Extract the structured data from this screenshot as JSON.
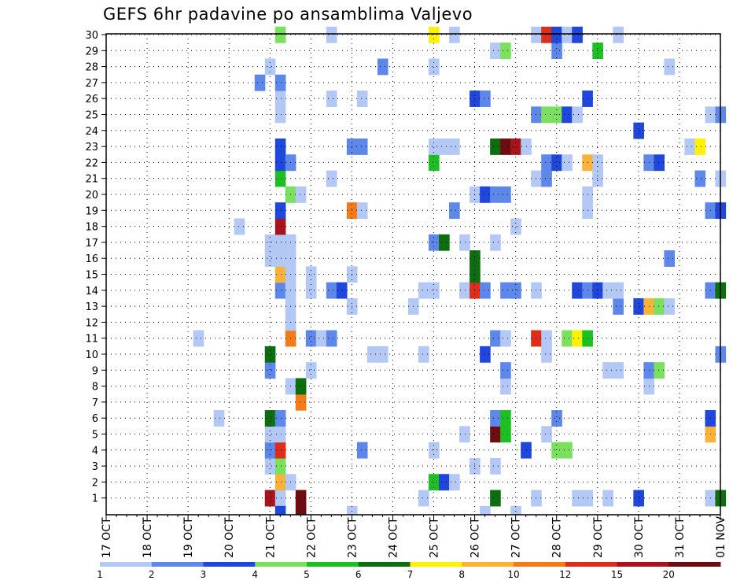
{
  "chart_data": {
    "type": "heatmap",
    "title": "GEFS 6hr padavine po ansamblima Valjevo",
    "xlabel": "",
    "ylabel": "",
    "x_tick_labels": [
      "17 OCT",
      "18 OCT",
      "19 OCT",
      "20 OCT",
      "21 OCT",
      "22 OCT",
      "23 OCT",
      "24 OCT",
      "25 OCT",
      "26 OCT",
      "27 OCT",
      "28 OCT",
      "29 OCT",
      "30 OCT",
      "31 OCT",
      "01 NOV"
    ],
    "y_tick_labels": [
      "1",
      "2",
      "3",
      "4",
      "5",
      "6",
      "7",
      "8",
      "9",
      "10",
      "11",
      "12",
      "13",
      "14",
      "15",
      "16",
      "17",
      "18",
      "19",
      "20",
      "21",
      "22",
      "23",
      "24",
      "25",
      "26",
      "27",
      "28",
      "29",
      "30"
    ],
    "x_unit": "6-hour step from 17 OCT 00Z",
    "x_range": [
      0,
      60
    ],
    "y_range": [
      0,
      30
    ],
    "grid": true,
    "levels": [
      "1",
      "2",
      "3",
      "4",
      "5",
      "6",
      "7",
      "8",
      "10",
      "12",
      "15",
      "20"
    ],
    "colors": [
      "#b3c8f5",
      "#5e87ea",
      "#1f47dc",
      "#7ae05e",
      "#1ebf23",
      "#0c6e0f",
      "#fff200",
      "#fab239",
      "#f37b18",
      "#dc2e1a",
      "#a7141c",
      "#6e0d11"
    ],
    "cells": [
      [
        1,
        16,
        10
      ],
      [
        1,
        17,
        0
      ],
      [
        1,
        19,
        11
      ],
      [
        1,
        31,
        0
      ],
      [
        1,
        38,
        5
      ],
      [
        1,
        42,
        0
      ],
      [
        1,
        46,
        0
      ],
      [
        1,
        47,
        0
      ],
      [
        1,
        49,
        0
      ],
      [
        1,
        52,
        2
      ],
      [
        1,
        59,
        0
      ],
      [
        1,
        60,
        5
      ],
      [
        2,
        17,
        7
      ],
      [
        2,
        18,
        0
      ],
      [
        2,
        32,
        4
      ],
      [
        2,
        33,
        2
      ],
      [
        2,
        34,
        0
      ],
      [
        3,
        16,
        0
      ],
      [
        3,
        17,
        3
      ],
      [
        3,
        36,
        0
      ],
      [
        3,
        38,
        0
      ],
      [
        4,
        16,
        1
      ],
      [
        4,
        17,
        9
      ],
      [
        4,
        25,
        1
      ],
      [
        4,
        32,
        0
      ],
      [
        4,
        41,
        2
      ],
      [
        4,
        44,
        3
      ],
      [
        4,
        45,
        3
      ],
      [
        5,
        16,
        0
      ],
      [
        5,
        17,
        0
      ],
      [
        5,
        35,
        0
      ],
      [
        5,
        38,
        11
      ],
      [
        5,
        39,
        4
      ],
      [
        5,
        43,
        0
      ],
      [
        5,
        59,
        7
      ],
      [
        6,
        11,
        0
      ],
      [
        6,
        16,
        5
      ],
      [
        6,
        17,
        1
      ],
      [
        6,
        38,
        1
      ],
      [
        6,
        39,
        4
      ],
      [
        6,
        44,
        1
      ],
      [
        6,
        59,
        2
      ],
      [
        7,
        19,
        8
      ],
      [
        8,
        18,
        0
      ],
      [
        8,
        19,
        5
      ],
      [
        8,
        39,
        0
      ],
      [
        8,
        53,
        0
      ],
      [
        9,
        16,
        1
      ],
      [
        9,
        20,
        0
      ],
      [
        9,
        39,
        1
      ],
      [
        9,
        49,
        0
      ],
      [
        9,
        50,
        0
      ],
      [
        9,
        53,
        1
      ],
      [
        9,
        54,
        3
      ],
      [
        10,
        16,
        5
      ],
      [
        10,
        26,
        0
      ],
      [
        10,
        27,
        0
      ],
      [
        10,
        31,
        0
      ],
      [
        10,
        37,
        2
      ],
      [
        10,
        43,
        0
      ],
      [
        10,
        60,
        1
      ],
      [
        11,
        9,
        0
      ],
      [
        11,
        18,
        8
      ],
      [
        11,
        20,
        1
      ],
      [
        11,
        21,
        0
      ],
      [
        11,
        22,
        1
      ],
      [
        11,
        38,
        1
      ],
      [
        11,
        39,
        0
      ],
      [
        11,
        42,
        9
      ],
      [
        11,
        43,
        0
      ],
      [
        11,
        45,
        3
      ],
      [
        11,
        46,
        6
      ],
      [
        11,
        47,
        4
      ],
      [
        12,
        18,
        0
      ],
      [
        13,
        18,
        0
      ],
      [
        13,
        24,
        0
      ],
      [
        13,
        30,
        0
      ],
      [
        13,
        50,
        1
      ],
      [
        13,
        52,
        2
      ],
      [
        13,
        53,
        7
      ],
      [
        13,
        54,
        3
      ],
      [
        13,
        55,
        0
      ],
      [
        14,
        17,
        1
      ],
      [
        14,
        18,
        0
      ],
      [
        14,
        20,
        0
      ],
      [
        14,
        22,
        1
      ],
      [
        14,
        23,
        2
      ],
      [
        14,
        31,
        0
      ],
      [
        14,
        32,
        0
      ],
      [
        14,
        35,
        0
      ],
      [
        14,
        36,
        9
      ],
      [
        14,
        37,
        1
      ],
      [
        14,
        39,
        1
      ],
      [
        14,
        40,
        1
      ],
      [
        14,
        42,
        0
      ],
      [
        14,
        46,
        2
      ],
      [
        14,
        47,
        1
      ],
      [
        14,
        48,
        2
      ],
      [
        14,
        49,
        0
      ],
      [
        14,
        50,
        0
      ],
      [
        14,
        59,
        1
      ],
      [
        14,
        60,
        5
      ],
      [
        15,
        17,
        7
      ],
      [
        15,
        18,
        0
      ],
      [
        15,
        20,
        0
      ],
      [
        15,
        24,
        0
      ],
      [
        15,
        36,
        5
      ],
      [
        16,
        16,
        0
      ],
      [
        16,
        17,
        0
      ],
      [
        16,
        18,
        0
      ],
      [
        16,
        36,
        5
      ],
      [
        16,
        55,
        1
      ],
      [
        17,
        16,
        0
      ],
      [
        17,
        17,
        0
      ],
      [
        17,
        18,
        0
      ],
      [
        17,
        32,
        1
      ],
      [
        17,
        33,
        5
      ],
      [
        17,
        35,
        0
      ],
      [
        17,
        38,
        0
      ],
      [
        18,
        13,
        0
      ],
      [
        18,
        17,
        10
      ],
      [
        18,
        40,
        0
      ],
      [
        19,
        17,
        2
      ],
      [
        19,
        24,
        8
      ],
      [
        19,
        25,
        0
      ],
      [
        19,
        34,
        1
      ],
      [
        19,
        47,
        0
      ],
      [
        19,
        59,
        1
      ],
      [
        19,
        60,
        2
      ],
      [
        20,
        18,
        3
      ],
      [
        20,
        19,
        0
      ],
      [
        20,
        36,
        0
      ],
      [
        20,
        37,
        2
      ],
      [
        20,
        38,
        1
      ],
      [
        20,
        39,
        1
      ],
      [
        20,
        47,
        0
      ],
      [
        21,
        17,
        4
      ],
      [
        21,
        22,
        0
      ],
      [
        21,
        42,
        0
      ],
      [
        21,
        43,
        1
      ],
      [
        21,
        48,
        0
      ],
      [
        21,
        58,
        1
      ],
      [
        21,
        60,
        0
      ],
      [
        22,
        17,
        2
      ],
      [
        22,
        18,
        1
      ],
      [
        22,
        32,
        4
      ],
      [
        22,
        43,
        1
      ],
      [
        22,
        44,
        2
      ],
      [
        22,
        45,
        0
      ],
      [
        22,
        47,
        7
      ],
      [
        22,
        48,
        0
      ],
      [
        22,
        53,
        1
      ],
      [
        22,
        54,
        2
      ],
      [
        23,
        17,
        2
      ],
      [
        23,
        24,
        1
      ],
      [
        23,
        25,
        1
      ],
      [
        23,
        32,
        0
      ],
      [
        23,
        33,
        0
      ],
      [
        23,
        34,
        0
      ],
      [
        23,
        38,
        5
      ],
      [
        23,
        39,
        11
      ],
      [
        23,
        40,
        10
      ],
      [
        23,
        41,
        0
      ],
      [
        23,
        57,
        0
      ],
      [
        23,
        58,
        6
      ],
      [
        24,
        52,
        2
      ],
      [
        25,
        17,
        0
      ],
      [
        25,
        42,
        1
      ],
      [
        25,
        43,
        3
      ],
      [
        25,
        44,
        3
      ],
      [
        25,
        45,
        2
      ],
      [
        25,
        46,
        0
      ],
      [
        25,
        59,
        0
      ],
      [
        25,
        60,
        1
      ],
      [
        26,
        17,
        0
      ],
      [
        26,
        22,
        0
      ],
      [
        26,
        25,
        0
      ],
      [
        26,
        36,
        2
      ],
      [
        26,
        37,
        1
      ],
      [
        26,
        47,
        2
      ],
      [
        27,
        15,
        1
      ],
      [
        27,
        17,
        1
      ],
      [
        28,
        16,
        0
      ],
      [
        28,
        27,
        1
      ],
      [
        28,
        32,
        0
      ],
      [
        28,
        55,
        0
      ],
      [
        29,
        38,
        0
      ],
      [
        29,
        39,
        3
      ],
      [
        29,
        44,
        1
      ],
      [
        29,
        48,
        4
      ],
      [
        30,
        17,
        3
      ],
      [
        30,
        22,
        0
      ],
      [
        30,
        32,
        6
      ],
      [
        30,
        34,
        0
      ],
      [
        30,
        42,
        0
      ],
      [
        30,
        43,
        9
      ],
      [
        30,
        44,
        2
      ],
      [
        30,
        45,
        0
      ],
      [
        30,
        46,
        2
      ],
      [
        30,
        50,
        0
      ]
    ],
    "bottom_strip": [
      [
        17,
        2
      ],
      [
        19,
        11
      ],
      [
        24,
        0
      ],
      [
        37,
        0
      ],
      [
        40,
        0
      ]
    ]
  }
}
